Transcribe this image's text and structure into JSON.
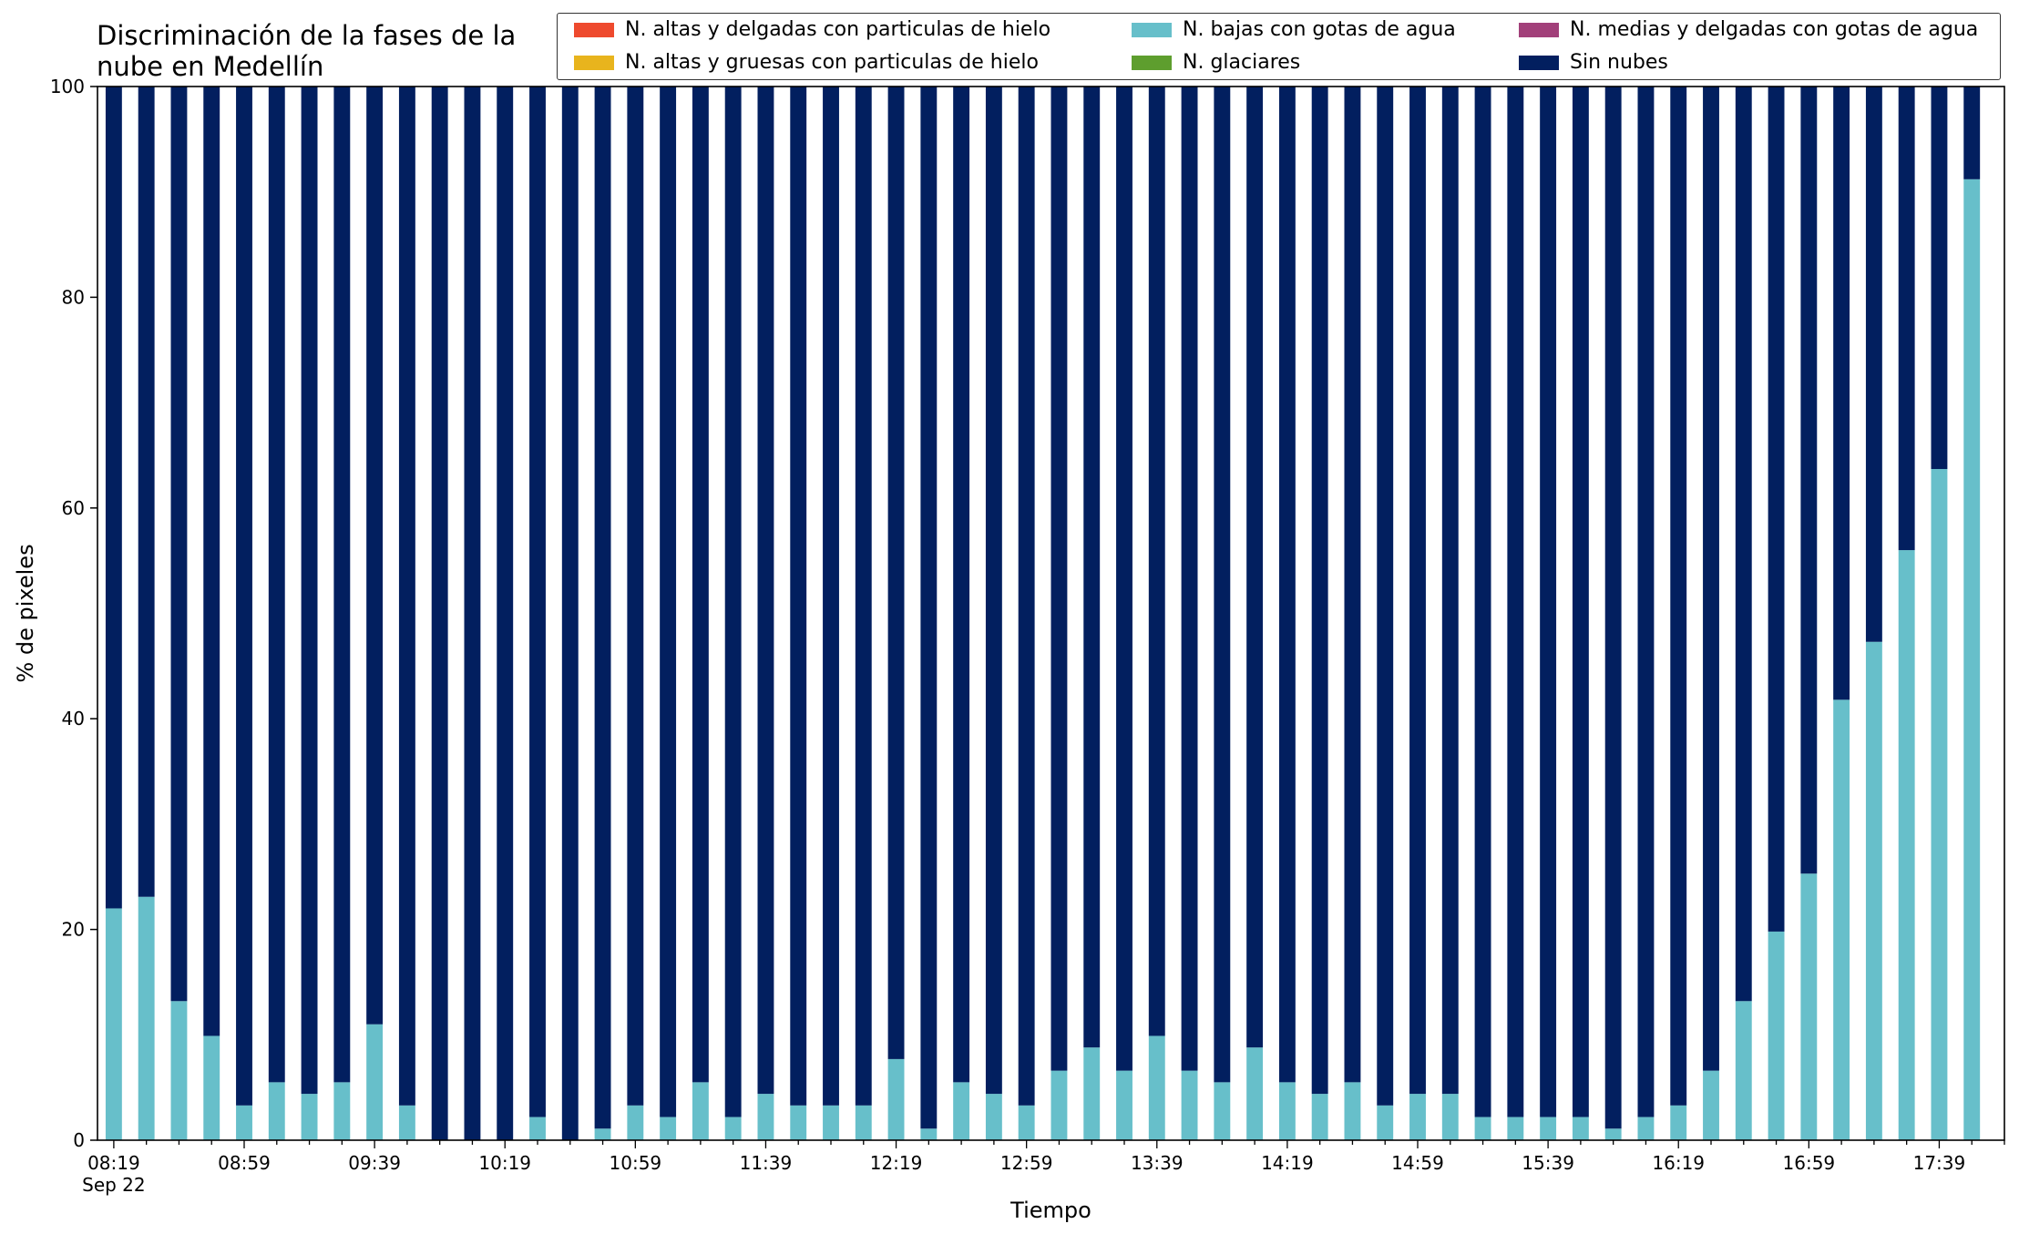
{
  "chart_data": {
    "type": "bar",
    "stacked": true,
    "title": "Discriminación de la fases de la nube en Medellín",
    "title_lines": [
      "Discriminación de la fases de la",
      "nube en Medellín"
    ],
    "xlabel": "Tiempo",
    "ylabel": "% de pixeles",
    "ylim": [
      0,
      100
    ],
    "yticks": [
      0,
      20,
      40,
      60,
      80,
      100
    ],
    "xtick_labels": [
      "08:19",
      "08:59",
      "09:39",
      "10:19",
      "10:59",
      "11:39",
      "12:19",
      "12:59",
      "13:39",
      "14:19",
      "14:59",
      "15:39",
      "16:19",
      "16:59",
      "17:39"
    ],
    "xtick_sublabel": "Sep 22",
    "legend_placement": "top-right",
    "categories": [
      "08:19",
      "08:29",
      "08:39",
      "08:49",
      "08:59",
      "09:09",
      "09:19",
      "09:29",
      "09:39",
      "09:49",
      "09:59",
      "10:09",
      "10:19",
      "10:29",
      "10:39",
      "10:49",
      "10:59",
      "11:09",
      "11:19",
      "11:29",
      "11:39",
      "11:49",
      "11:59",
      "12:09",
      "12:19",
      "12:29",
      "12:39",
      "12:49",
      "12:59",
      "13:09",
      "13:19",
      "13:29",
      "13:39",
      "13:49",
      "13:59",
      "14:09",
      "14:19",
      "14:29",
      "14:39",
      "14:49",
      "14:59",
      "15:09",
      "15:19",
      "15:29",
      "15:39",
      "15:49",
      "15:59",
      "16:09",
      "16:19",
      "16:29",
      "16:39",
      "16:49",
      "16:59",
      "17:09",
      "17:19",
      "17:29",
      "17:39",
      "17:49"
    ],
    "series": [
      {
        "name": "N. altas y delgadas con particulas de hielo",
        "color": "#ee4a2e",
        "values": [
          0,
          0,
          0,
          0,
          0,
          0,
          0,
          0,
          0,
          0,
          0,
          0,
          0,
          0,
          0,
          0,
          0,
          0,
          0,
          0,
          0,
          0,
          0,
          0,
          0,
          0,
          0,
          0,
          0,
          0,
          0,
          0,
          0,
          0,
          0,
          0,
          0,
          0,
          0,
          0,
          0,
          0,
          0,
          0,
          0,
          0,
          0,
          0,
          0,
          0,
          0,
          0,
          0,
          0,
          0,
          0,
          0,
          0
        ]
      },
      {
        "name": "N. altas y gruesas con particulas de hielo",
        "color": "#e8b41d",
        "values": [
          0,
          0,
          0,
          0,
          0,
          0,
          0,
          0,
          0,
          0,
          0,
          0,
          0,
          0,
          0,
          0,
          0,
          0,
          0,
          0,
          0,
          0,
          0,
          0,
          0,
          0,
          0,
          0,
          0,
          0,
          0,
          0,
          0,
          0,
          0,
          0,
          0,
          0,
          0,
          0,
          0,
          0,
          0,
          0,
          0,
          0,
          0,
          0,
          0,
          0,
          0,
          0,
          0,
          0,
          0,
          0,
          0,
          0
        ]
      },
      {
        "name": "N. bajas con gotas de agua",
        "color": "#67bfca",
        "values": [
          22.0,
          23.1,
          13.2,
          9.9,
          3.3,
          5.5,
          4.4,
          5.5,
          11.0,
          3.3,
          0,
          0,
          0,
          2.2,
          0,
          1.1,
          3.3,
          2.2,
          5.5,
          2.2,
          4.4,
          3.3,
          3.3,
          3.3,
          7.7,
          1.1,
          5.5,
          4.4,
          3.3,
          6.6,
          8.8,
          6.6,
          9.9,
          6.6,
          5.5,
          8.8,
          5.5,
          4.4,
          5.5,
          3.3,
          4.4,
          4.4,
          2.2,
          2.2,
          2.2,
          2.2,
          1.1,
          2.2,
          3.3,
          6.6,
          13.2,
          19.8,
          25.3,
          41.8,
          47.3,
          56.0,
          63.7,
          91.2
        ]
      },
      {
        "name": "N. glaciares",
        "color": "#5e9e2e",
        "values": [
          0,
          0,
          0,
          0,
          0,
          0,
          0,
          0,
          0,
          0,
          0,
          0,
          0,
          0,
          0,
          0,
          0,
          0,
          0,
          0,
          0,
          0,
          0,
          0,
          0,
          0,
          0,
          0,
          0,
          0,
          0,
          0,
          0,
          0,
          0,
          0,
          0,
          0,
          0,
          0,
          0,
          0,
          0,
          0,
          0,
          0,
          0,
          0,
          0,
          0,
          0,
          0,
          0,
          0,
          0,
          0,
          0,
          0
        ]
      },
      {
        "name": "N. medias y delgadas con gotas de agua",
        "color": "#a2407a",
        "values": [
          0,
          0,
          0,
          0,
          0,
          0,
          0,
          0,
          0,
          0,
          0,
          0,
          0,
          0,
          0,
          0,
          0,
          0,
          0,
          0,
          0,
          0,
          0,
          0,
          0,
          0,
          0,
          0,
          0,
          0,
          0,
          0,
          0,
          0,
          0,
          0,
          0,
          0,
          0,
          0,
          0,
          0,
          0,
          0,
          0,
          0,
          0,
          0,
          0,
          0,
          0,
          0,
          0,
          0,
          0,
          0,
          0,
          0
        ]
      },
      {
        "name": "Sin nubes",
        "color": "#021f5f",
        "values": [
          78.0,
          76.9,
          86.8,
          90.1,
          96.7,
          94.5,
          95.6,
          94.5,
          89.0,
          96.7,
          100,
          100,
          100,
          97.8,
          100,
          98.9,
          96.7,
          97.8,
          94.5,
          97.8,
          95.6,
          96.7,
          96.7,
          96.7,
          92.3,
          98.9,
          94.5,
          95.6,
          96.7,
          93.4,
          91.2,
          93.4,
          90.1,
          93.4,
          94.5,
          91.2,
          94.5,
          95.6,
          94.5,
          96.7,
          95.6,
          95.6,
          97.8,
          97.8,
          97.8,
          97.8,
          98.9,
          97.8,
          96.7,
          93.4,
          86.8,
          80.2,
          74.7,
          58.2,
          52.7,
          44.0,
          36.3,
          8.8
        ]
      }
    ]
  }
}
